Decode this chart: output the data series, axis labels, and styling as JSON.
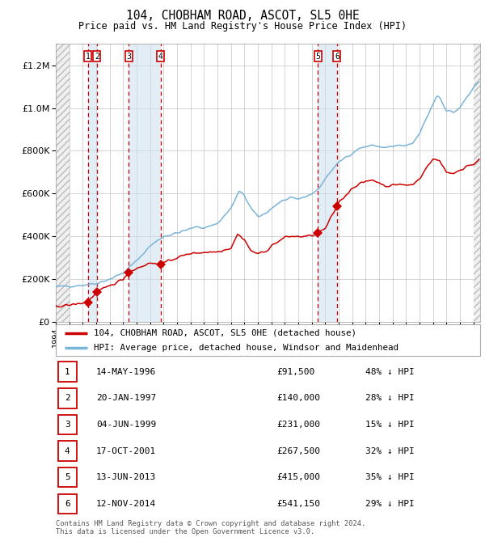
{
  "title": "104, CHOBHAM ROAD, ASCOT, SL5 0HE",
  "subtitle": "Price paid vs. HM Land Registry's House Price Index (HPI)",
  "footer1": "Contains HM Land Registry data © Crown copyright and database right 2024.",
  "footer2": "This data is licensed under the Open Government Licence v3.0.",
  "legend_red": "104, CHOBHAM ROAD, ASCOT, SL5 0HE (detached house)",
  "legend_blue": "HPI: Average price, detached house, Windsor and Maidenhead",
  "transactions": [
    {
      "num": 1,
      "date": "14-MAY-1996",
      "year": 1996.37,
      "price": 91500,
      "pct": "48% ↓ HPI"
    },
    {
      "num": 2,
      "date": "20-JAN-1997",
      "year": 1997.05,
      "price": 140000,
      "pct": "28% ↓ HPI"
    },
    {
      "num": 3,
      "date": "04-JUN-1999",
      "year": 1999.42,
      "price": 231000,
      "pct": "15% ↓ HPI"
    },
    {
      "num": 4,
      "date": "17-OCT-2001",
      "year": 2001.79,
      "price": 267500,
      "pct": "32% ↓ HPI"
    },
    {
      "num": 5,
      "date": "13-JUN-2013",
      "year": 2013.45,
      "price": 415000,
      "pct": "35% ↓ HPI"
    },
    {
      "num": 6,
      "date": "12-NOV-2014",
      "year": 2014.87,
      "price": 541150,
      "pct": "29% ↓ HPI"
    }
  ],
  "hpi_color": "#7ab4d8",
  "price_color": "#cc0000",
  "marker_color": "#cc0000",
  "vline_color": "#cc0000",
  "shade_color": "#ccdff0",
  "ylim": [
    0,
    1300000
  ],
  "yticks": [
    0,
    200000,
    400000,
    600000,
    800000,
    1000000,
    1200000
  ],
  "xlim_start": 1994.0,
  "xlim_end": 2025.5,
  "background_color": "#ffffff",
  "grid_color": "#cccccc"
}
